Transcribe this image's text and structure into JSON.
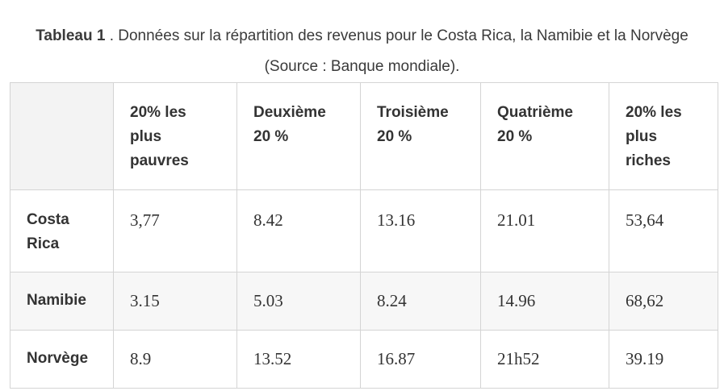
{
  "caption": {
    "label": "Tableau 1",
    "text": " . Données sur la répartition des revenus pour le Costa Rica, la Namibie et la Norvège",
    "source": "(Source : Banque mondiale)."
  },
  "table": {
    "headers": [
      "",
      "20% les plus pauvres",
      "Deuxième 20 %",
      "Troisième 20 %",
      "Quatrième 20 %",
      "20% les plus riches"
    ],
    "rows": [
      {
        "country": "Costa Rica",
        "values": [
          "3,77",
          "8.42",
          "13.16",
          "21.01",
          "53,64"
        ]
      },
      {
        "country": "Namibie",
        "values": [
          "3.15",
          "5.03",
          "8.24",
          "14.96",
          "68,62"
        ]
      },
      {
        "country": "Norvège",
        "values": [
          "8.9",
          "13.52",
          "16.87",
          "21h52",
          "39.19"
        ]
      }
    ]
  }
}
